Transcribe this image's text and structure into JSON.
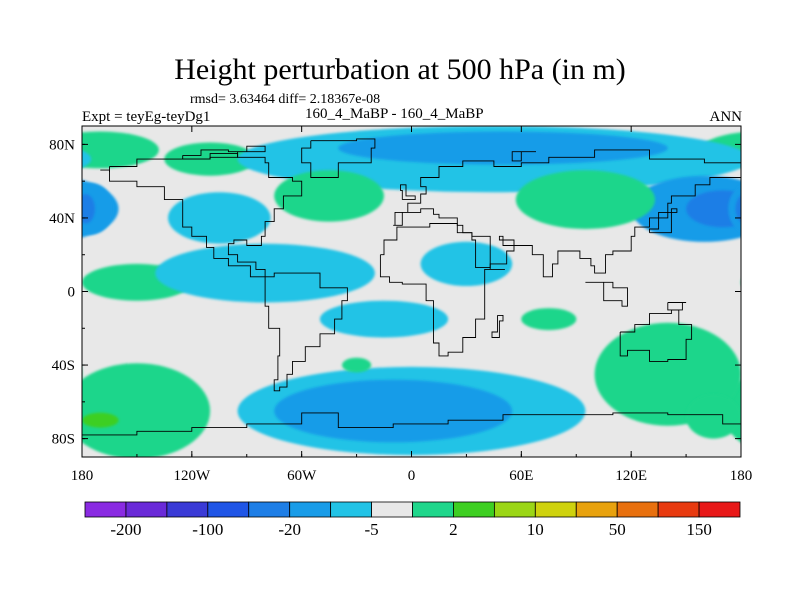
{
  "chart_data": {
    "type": "heatmap",
    "title": "Height perturbation at 500 hPa (in m)",
    "stats_text": "rmsd= 3.63464 diff= 2.18367e-08",
    "left_label": "Expt = teyEg-teyDg1",
    "center_label": "160_4_MaBP - 160_4_MaBP",
    "right_label": "ANN",
    "x_ticks": [
      "180",
      "120W",
      "60W",
      "0",
      "60E",
      "120E",
      "180"
    ],
    "x_tick_values": [
      -180,
      -120,
      -60,
      0,
      60,
      120,
      180
    ],
    "y_ticks": [
      "80N",
      "40N",
      "0",
      "40S",
      "80S"
    ],
    "y_tick_values": [
      80,
      40,
      0,
      -40,
      -80
    ],
    "xlim": [
      -180,
      180
    ],
    "ylim": [
      -90,
      90
    ],
    "colorbar": {
      "colors": [
        "#8a2be2",
        "#6a2ad8",
        "#3a3ad6",
        "#1f55e6",
        "#1e7ee6",
        "#199ce8",
        "#22c3e6",
        "#e8e8e8",
        "#1fd68b",
        "#3ecf22",
        "#9bd616",
        "#cfd20e",
        "#e8a20e",
        "#e8700e",
        "#e83a10",
        "#e81818"
      ],
      "labels": [
        "-200",
        "-100",
        "-20",
        "-5",
        "2",
        "10",
        "50",
        "150"
      ]
    },
    "regions": [
      {
        "level": 2,
        "lon": -165,
        "lat": 78,
        "rx": 18,
        "ry": 6
      },
      {
        "level": 1,
        "lon": -170,
        "lat": 77,
        "rx": 32,
        "ry": 10
      },
      {
        "level": 1,
        "lon": -110,
        "lat": 72,
        "rx": 25,
        "ry": 9
      },
      {
        "level": -1,
        "lon": 45,
        "lat": 72,
        "rx": 140,
        "ry": 18
      },
      {
        "level": -2,
        "lon": 50,
        "lat": 78,
        "rx": 90,
        "ry": 9
      },
      {
        "level": -2,
        "lon": 160,
        "lat": 45,
        "rx": 40,
        "ry": 18
      },
      {
        "level": -3,
        "lon": 170,
        "lat": 45,
        "rx": 20,
        "ry": 10
      },
      {
        "level": -2,
        "lon": -175,
        "lat": 45,
        "rx": 12,
        "ry": 14
      },
      {
        "level": -3,
        "lon": -178,
        "lat": 45,
        "rx": 5,
        "ry": 8
      },
      {
        "level": 1,
        "lon": -45,
        "lat": 52,
        "rx": 30,
        "ry": 14
      },
      {
        "level": 1,
        "lon": 95,
        "lat": 50,
        "rx": 38,
        "ry": 16
      },
      {
        "level": -1,
        "lon": -105,
        "lat": 40,
        "rx": 28,
        "ry": 14
      },
      {
        "level": -1,
        "lon": 30,
        "lat": 15,
        "rx": 25,
        "ry": 12
      },
      {
        "level": 1,
        "lon": -150,
        "lat": 5,
        "rx": 30,
        "ry": 10
      },
      {
        "level": -1,
        "lon": -80,
        "lat": 10,
        "rx": 60,
        "ry": 16
      },
      {
        "level": -1,
        "lon": -15,
        "lat": -15,
        "rx": 35,
        "ry": 10
      },
      {
        "level": 1,
        "lon": -150,
        "lat": -65,
        "rx": 40,
        "ry": 26
      },
      {
        "level": 2,
        "lon": -170,
        "lat": -70,
        "rx": 10,
        "ry": 4
      },
      {
        "level": -1,
        "lon": 0,
        "lat": -65,
        "rx": 95,
        "ry": 24
      },
      {
        "level": -2,
        "lon": -10,
        "lat": -65,
        "rx": 65,
        "ry": 17
      },
      {
        "level": 1,
        "lon": 140,
        "lat": -45,
        "rx": 40,
        "ry": 28
      },
      {
        "level": 1,
        "lon": 165,
        "lat": -68,
        "rx": 15,
        "ry": 12
      },
      {
        "level": 1,
        "lon": 75,
        "lat": -15,
        "rx": 15,
        "ry": 6
      },
      {
        "level": 1,
        "lon": -30,
        "lat": -40,
        "rx": 8,
        "ry": 4
      }
    ]
  }
}
